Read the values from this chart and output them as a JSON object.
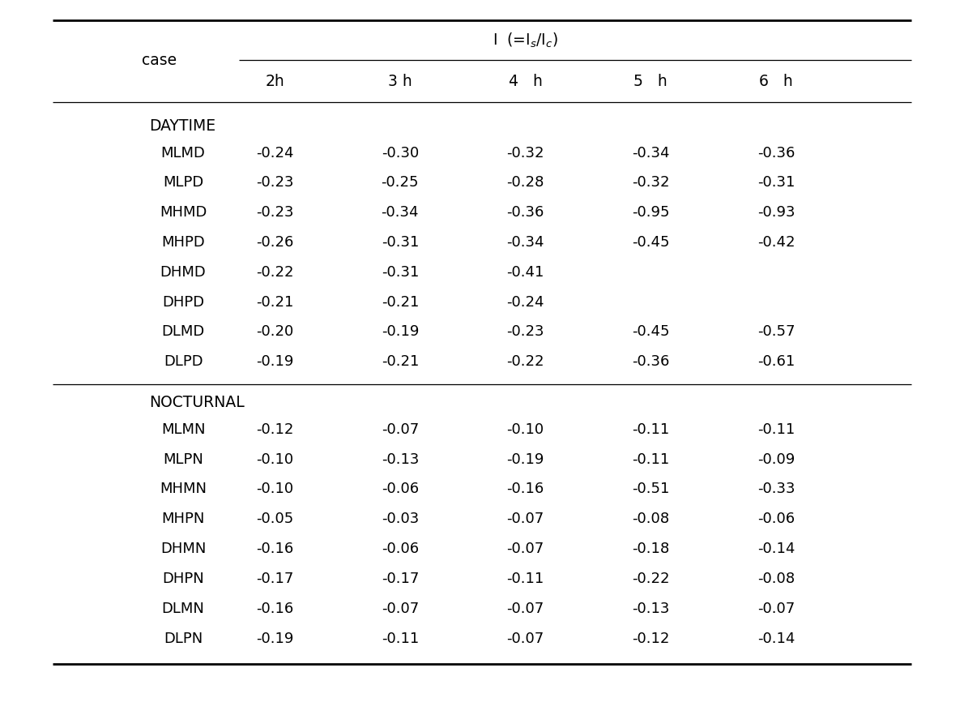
{
  "col_headers": [
    "2h",
    "3 h",
    "4   h",
    "5   h",
    "6   h"
  ],
  "rows_day": [
    [
      "MLMD",
      "-0.24",
      "-0.30",
      "-0.32",
      "-0.34",
      "-0.36"
    ],
    [
      "MLPD",
      "-0.23",
      "-0.25",
      "-0.28",
      "-0.32",
      "-0.31"
    ],
    [
      "MHMD",
      "-0.23",
      "-0.34",
      "-0.36",
      "-0.95",
      "-0.93"
    ],
    [
      "MHPD",
      "-0.26",
      "-0.31",
      "-0.34",
      "-0.45",
      "-0.42"
    ],
    [
      "DHMD",
      "-0.22",
      "-0.31",
      "-0.41",
      "",
      ""
    ],
    [
      "DHPD",
      "-0.21",
      "-0.21",
      "-0.24",
      "",
      ""
    ],
    [
      "DLMD",
      "-0.20",
      "-0.19",
      "-0.23",
      "-0.45",
      "-0.57"
    ],
    [
      "DLPD",
      "-0.19",
      "-0.21",
      "-0.22",
      "-0.36",
      "-0.61"
    ]
  ],
  "rows_noc": [
    [
      "MLMN",
      "-0.12",
      "-0.07",
      "-0.10",
      "-0.11",
      "-0.11"
    ],
    [
      "MLPN",
      "-0.10",
      "-0.13",
      "-0.19",
      "-0.11",
      "-0.09"
    ],
    [
      "MHMN",
      "-0.10",
      "-0.06",
      "-0.16",
      "-0.51",
      "-0.33"
    ],
    [
      "MHPN",
      "-0.05",
      "-0.03",
      "-0.07",
      "-0.08",
      "-0.06"
    ],
    [
      "DHMN",
      "-0.16",
      "-0.06",
      "-0.07",
      "-0.18",
      "-0.14"
    ],
    [
      "DHPN",
      "-0.17",
      "-0.17",
      "-0.11",
      "-0.22",
      "-0.08"
    ],
    [
      "DLMN",
      "-0.16",
      "-0.07",
      "-0.07",
      "-0.13",
      "-0.07"
    ],
    [
      "DLPN",
      "-0.19",
      "-0.11",
      "-0.07",
      "-0.12",
      "-0.14"
    ]
  ],
  "bg_color": "#ffffff",
  "line_color": "#000000",
  "text_color": "#000000"
}
